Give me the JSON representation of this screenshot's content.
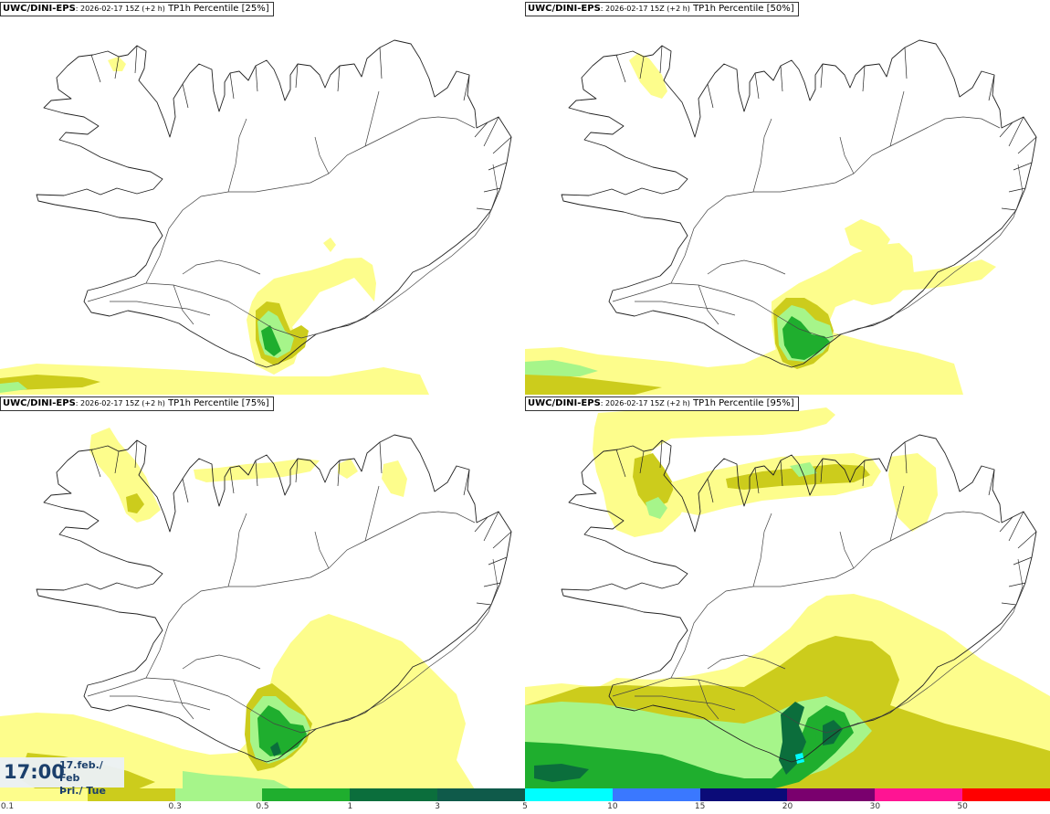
{
  "panels": [
    {
      "source": "UWC/DINI-EPS",
      "run": ": 2026-02-17 15Z (+2 h)",
      "variable": " TP1h Percentile [25%]"
    },
    {
      "source": "UWC/DINI-EPS",
      "run": ": 2026-02-17 15Z (+2 h)",
      "variable": " TP1h Percentile [50%]"
    },
    {
      "source": "UWC/DINI-EPS",
      "run": ": 2026-02-17 15Z (+2 h)",
      "variable": " TP1h Percentile [75%]"
    },
    {
      "source": "UWC/DINI-EPS",
      "run": ": 2026-02-17 15Z (+2 h)",
      "variable": " TP1h Percentile [95%]"
    }
  ],
  "time": {
    "hhmm": "17:00",
    "date_line1": "17.feb./ Feb",
    "date_line2": "Þri./ Tue"
  },
  "legend": {
    "labels": [
      "0.1",
      "0.3",
      "0.5",
      "1",
      "3",
      "5",
      "10",
      "15",
      "20",
      "30",
      "50"
    ],
    "colors": [
      "#fdfd8c",
      "#cccc1c",
      "#a6f58a",
      "#1fae2e",
      "#0b6e3c",
      "#0f5a4a",
      "#00ffff",
      "#3a78ff",
      "#0b0b78",
      "#7a006e",
      "#ff1493",
      "#ff0000"
    ]
  },
  "colors": {
    "light_yellow": "#fdfd8c",
    "olive": "#cccc1c",
    "light_green": "#a6f58a",
    "green": "#1fae2e",
    "dark_green": "#0b6e3c",
    "teal": "#0f5a4a",
    "cyan": "#00ffff"
  }
}
